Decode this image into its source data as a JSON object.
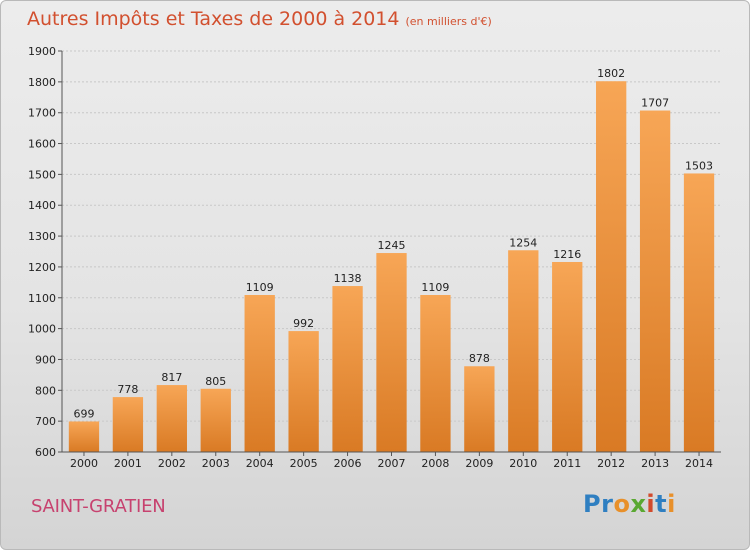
{
  "title": "Autres Impôts et Taxes de 2000 à 2014",
  "subtitle": "(en milliers d'€)",
  "city": "SAINT-GRATIEN",
  "logo": {
    "text": "Proxiti",
    "letters": [
      "P",
      "r",
      "o",
      "x",
      "i",
      "t",
      "i"
    ]
  },
  "colors": {
    "title": "#d2502f",
    "city": "#c7426f",
    "bar_light": "#f7a656",
    "bar_dark": "#d97a24",
    "logo": [
      "#2f7fc1",
      "#2f7fc1",
      "#e8902a",
      "#5aa832",
      "#d24a2c",
      "#2f7fc1",
      "#e8902a"
    ]
  },
  "chart_data": {
    "type": "bar",
    "categories": [
      "2000",
      "2001",
      "2002",
      "2003",
      "2004",
      "2005",
      "2006",
      "2007",
      "2008",
      "2009",
      "2010",
      "2011",
      "2012",
      "2013",
      "2014"
    ],
    "values": [
      699,
      778,
      817,
      805,
      1109,
      992,
      1138,
      1245,
      1109,
      878,
      1254,
      1216,
      1802,
      1707,
      1503
    ],
    "ylim": [
      600,
      1900
    ],
    "yticks": [
      600,
      700,
      800,
      900,
      1000,
      1100,
      1200,
      1300,
      1400,
      1500,
      1600,
      1700,
      1800,
      1900
    ],
    "grid": true,
    "title": "Autres Impôts et Taxes de 2000 à 2014",
    "subtitle": "(en milliers d'€)",
    "xlabel": "",
    "ylabel": ""
  }
}
